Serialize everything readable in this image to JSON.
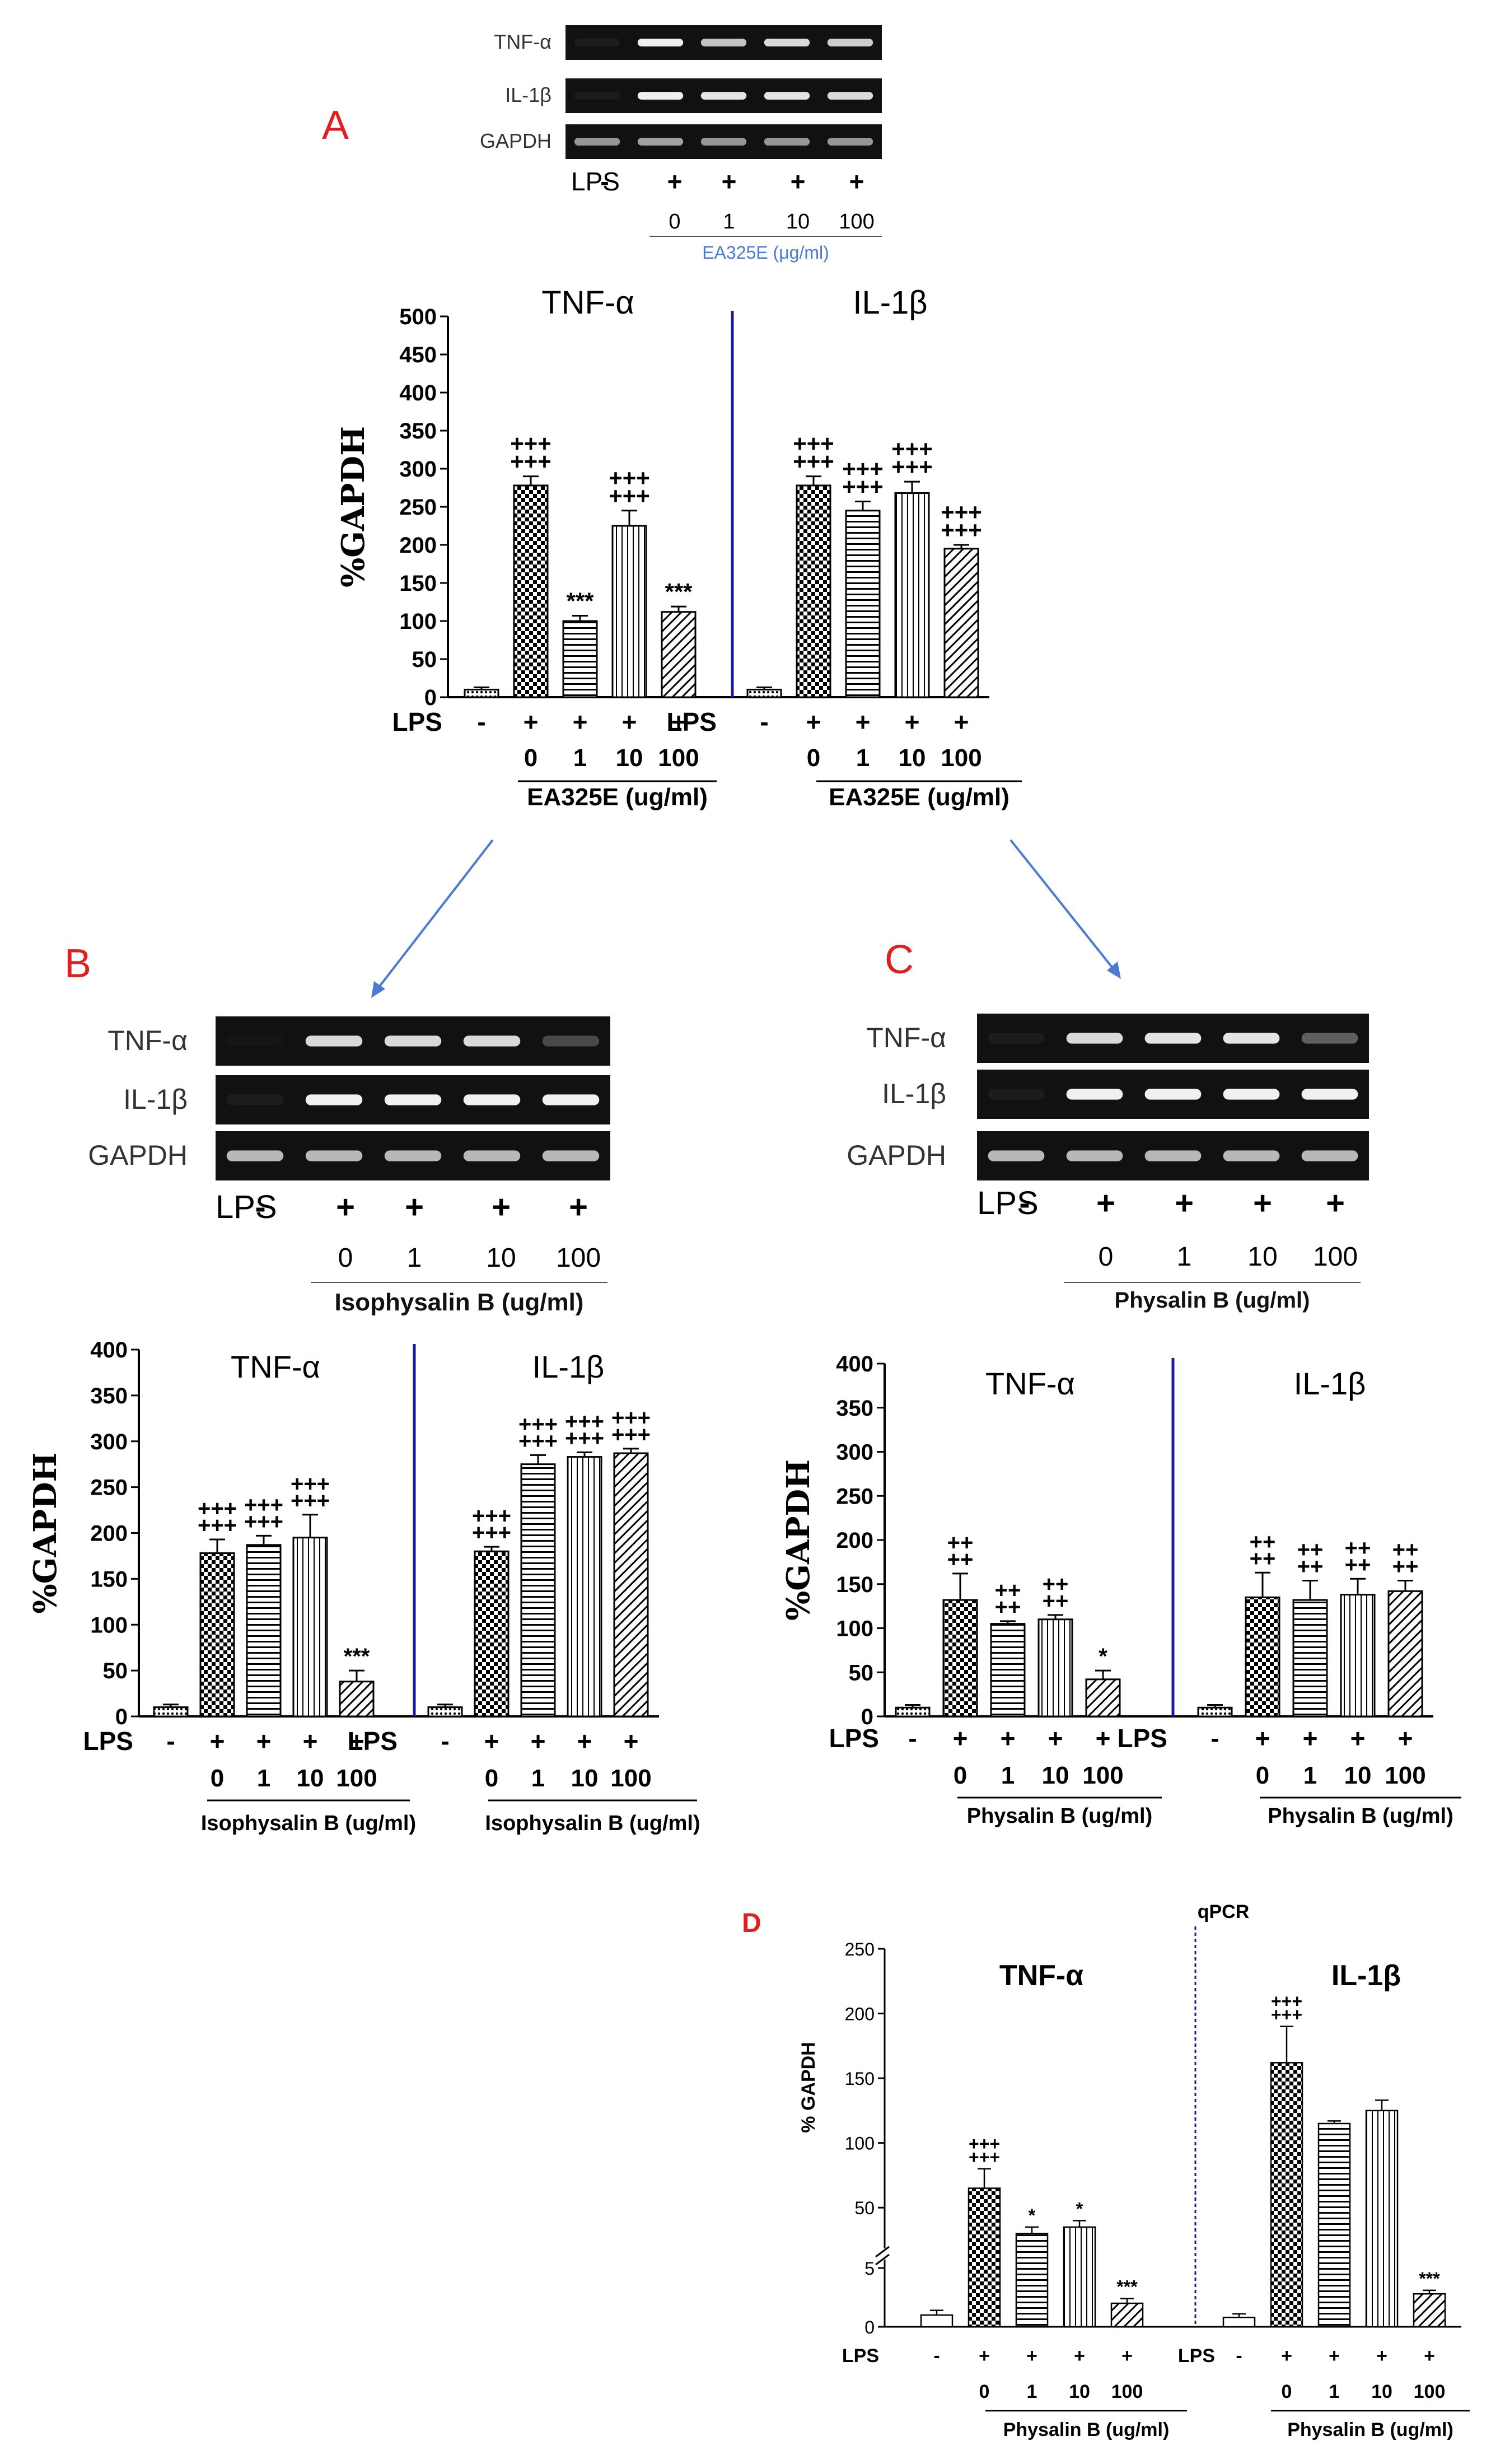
{
  "colors": {
    "red_label": "#e02020",
    "divider": "#1a1aa0",
    "gel_bg": "#111111",
    "band": "#e8e8e8",
    "arrow": "#4a7bd0",
    "subcaption": "#4a7bd0"
  },
  "panels": {
    "A": {
      "letter": "A",
      "gel": {
        "rows": [
          "TNF-α",
          "IL-1β",
          "GAPDH"
        ],
        "lps_label": "LPS",
        "lps": [
          "-",
          "+",
          "+",
          "+",
          "+"
        ],
        "doses": [
          "0",
          "1",
          "10",
          "100"
        ],
        "caption": "EA325E (μg/ml)"
      }
    },
    "B": {
      "letter": "B",
      "gel": {
        "rows": [
          "TNF-α",
          "IL-1β",
          "GAPDH"
        ],
        "lps_label": "LPS",
        "lps": [
          "-",
          "+",
          "+",
          "+",
          "+"
        ],
        "doses": [
          "0",
          "1",
          "10",
          "100"
        ],
        "caption": "Isophysalin B (ug/ml)"
      }
    },
    "C": {
      "letter": "C",
      "gel": {
        "rows": [
          "TNF-α",
          "IL-1β",
          "GAPDH"
        ],
        "lps_label": "LPS",
        "lps": [
          "-",
          "+",
          "+",
          "+",
          "+"
        ],
        "doses": [
          "0",
          "1",
          "10",
          "100"
        ],
        "caption": "Physalin B (ug/ml)"
      }
    },
    "D": {
      "letter": "D"
    }
  },
  "chart_data": [
    {
      "id": "A",
      "type": "bar",
      "ylabel": "%GAPDH",
      "ylim": [
        0,
        500
      ],
      "yticks": [
        0,
        50,
        100,
        150,
        200,
        250,
        300,
        350,
        400,
        450,
        500
      ],
      "groups": [
        {
          "title": "TNF-α",
          "values": [
            10,
            278,
            100,
            225,
            112
          ],
          "errors": [
            3,
            12,
            7,
            20,
            7
          ],
          "annotations": [
            "",
            "+++\n+++",
            "***",
            "+++\n+++",
            "***"
          ],
          "lps_label": "LPS",
          "lps": [
            "-",
            "+",
            "+",
            "+",
            "+"
          ],
          "doses": [
            "0",
            "1",
            "10",
            "100"
          ],
          "caption": "EA325E (ug/ml)"
        },
        {
          "title": "IL-1β",
          "values": [
            10,
            278,
            245,
            268,
            195
          ],
          "errors": [
            3,
            12,
            12,
            15,
            5
          ],
          "annotations": [
            "",
            "+++\n+++",
            "+++\n+++",
            "+++\n+++",
            "+++\n+++"
          ],
          "lps_label": "LPS",
          "lps": [
            "-",
            "+",
            "+",
            "+",
            "+"
          ],
          "doses": [
            "0",
            "1",
            "10",
            "100"
          ],
          "caption": "EA325E (ug/ml)"
        }
      ]
    },
    {
      "id": "B",
      "type": "bar",
      "ylabel": "%GAPDH",
      "ylim": [
        0,
        400
      ],
      "yticks": [
        0,
        50,
        100,
        150,
        200,
        250,
        300,
        350,
        400
      ],
      "groups": [
        {
          "title": "TNF-α",
          "values": [
            10,
            178,
            187,
            195,
            38
          ],
          "errors": [
            3,
            15,
            10,
            25,
            12
          ],
          "annotations": [
            "",
            "+++\n+++",
            "+++\n+++",
            "+++\n+++",
            "***"
          ],
          "lps_label": "LPS",
          "lps": [
            "-",
            "+",
            "+",
            "+",
            "+"
          ],
          "doses": [
            "0",
            "1",
            "10",
            "100"
          ],
          "caption": "Isophysalin B (ug/ml)"
        },
        {
          "title": "IL-1β",
          "values": [
            10,
            180,
            275,
            283,
            287
          ],
          "errors": [
            3,
            5,
            10,
            5,
            5
          ],
          "annotations": [
            "",
            "+++\n+++",
            "+++\n+++",
            "+++\n+++",
            "+++\n+++"
          ],
          "lps_label": "LPS",
          "lps": [
            "-",
            "+",
            "+",
            "+",
            "+"
          ],
          "doses": [
            "0",
            "1",
            "10",
            "100"
          ],
          "caption": "Isophysalin B (ug/ml)"
        }
      ]
    },
    {
      "id": "C",
      "type": "bar",
      "ylabel": "%GAPDH",
      "ylim": [
        0,
        400
      ],
      "yticks": [
        0,
        50,
        100,
        150,
        200,
        250,
        300,
        350,
        400
      ],
      "groups": [
        {
          "title": "TNF-α",
          "values": [
            10,
            132,
            105,
            110,
            42
          ],
          "errors": [
            3,
            30,
            3,
            5,
            10
          ],
          "annotations": [
            "",
            "++\n++",
            "++\n++",
            "++\n++",
            "*"
          ],
          "lps_label": "LPS",
          "lps": [
            "-",
            "+",
            "+",
            "+",
            "+"
          ],
          "doses": [
            "0",
            "1",
            "10",
            "100"
          ],
          "caption": "Physalin B (ug/ml)"
        },
        {
          "title": "IL-1β",
          "values": [
            10,
            135,
            132,
            138,
            142
          ],
          "errors": [
            3,
            28,
            22,
            18,
            12
          ],
          "annotations": [
            "",
            "++\n++",
            "++\n++",
            "++\n++",
            "++\n++"
          ],
          "lps_label": "LPS",
          "lps": [
            "-",
            "+",
            "+",
            "+",
            "+"
          ],
          "doses": [
            "0",
            "1",
            "10",
            "100"
          ],
          "caption": "Physalin B (ug/ml)"
        }
      ]
    },
    {
      "id": "D",
      "type": "bar",
      "title": "qPCR",
      "ylabel": "% GAPDH",
      "broken_axis": true,
      "yticks_low": [
        0,
        5
      ],
      "yticks_high": [
        50,
        100,
        150,
        200,
        250
      ],
      "groups": [
        {
          "title": "TNF-α",
          "values": [
            1,
            65,
            30,
            35,
            2
          ],
          "errors": [
            0.4,
            15,
            5,
            5,
            0.4
          ],
          "annotations": [
            "",
            "+++\n+++",
            "*",
            "*",
            "***"
          ],
          "lps_label": "LPS",
          "lps": [
            "-",
            "+",
            "+",
            "+",
            "+"
          ],
          "doses": [
            "0",
            "1",
            "10",
            "100"
          ],
          "caption": "Physalin B (ug/ml)"
        },
        {
          "title": "IL-1β",
          "values": [
            0.8,
            162,
            115,
            125,
            2.8
          ],
          "errors": [
            0.3,
            28,
            2,
            8,
            0.3
          ],
          "annotations": [
            "",
            "+++\n+++",
            "",
            "",
            "***"
          ],
          "lps_label": "LPS",
          "lps": [
            "-",
            "+",
            "+",
            "+",
            "+"
          ],
          "doses": [
            "0",
            "1",
            "10",
            "100"
          ],
          "caption": "Physalin B (ug/ml)"
        }
      ]
    }
  ]
}
